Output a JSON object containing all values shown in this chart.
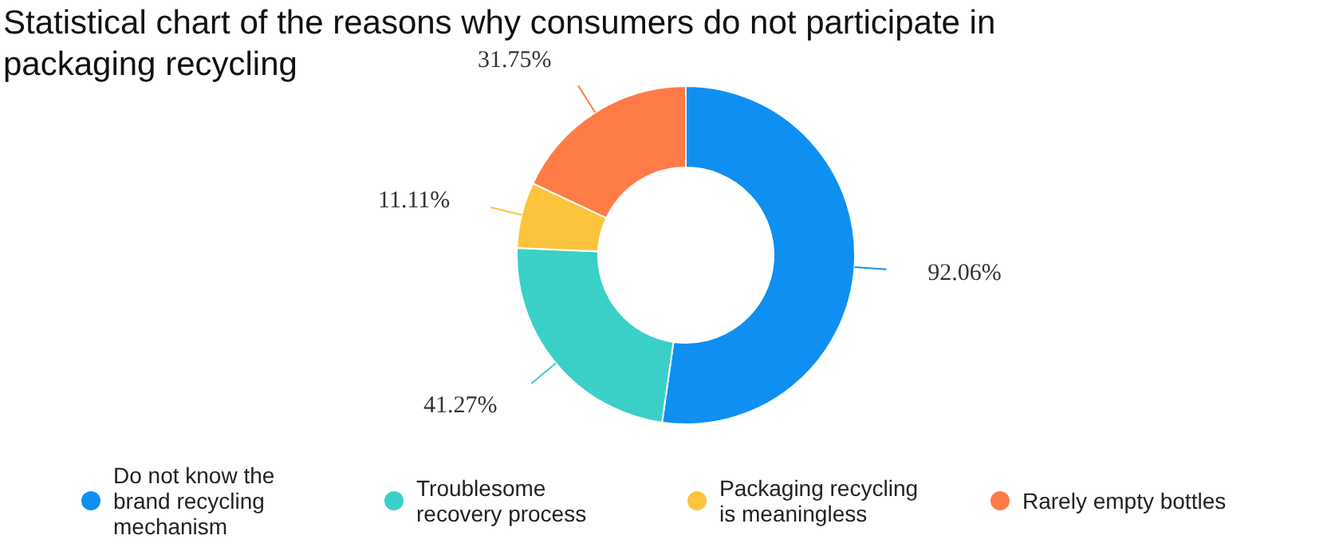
{
  "chart_data": {
    "type": "donut",
    "title": "Statistical chart of the reasons why consumers do not participate in packaging recycling",
    "categories": [
      "Do not know the brand recycling mechanism",
      "Troublesome recovery process",
      "Packaging recycling is meaningless",
      "Rarely empty bottles"
    ],
    "values": [
      92.06,
      41.27,
      11.11,
      31.75
    ],
    "colors": [
      "#0f8ff2",
      "#3ad0c8",
      "#fcc43c",
      "#ff7b47"
    ],
    "value_labels": [
      "92.06%",
      "41.27%",
      "11.11%",
      "31.75%"
    ],
    "legend": "bottom"
  }
}
